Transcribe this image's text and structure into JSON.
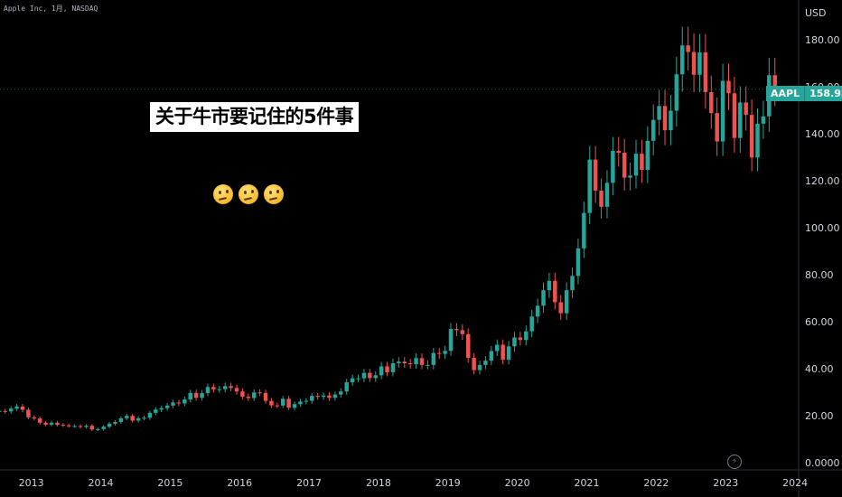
{
  "symbol_title": "Apple Inc, 1月, NASDAQ",
  "currency": "USD",
  "headline": "关于牛市要记住的5件事",
  "emoji_icons": [
    "thinking-face-icon",
    "thinking-face-icon",
    "thinking-face-icon"
  ],
  "price_tag": {
    "symbol": "AAPL",
    "value": "158.93"
  },
  "colors": {
    "up": "#26a69a",
    "down": "#ef5350",
    "background": "#000000",
    "text": "#d1d4dc"
  },
  "chart_data": {
    "type": "candlestick",
    "xlim": [
      2012.55,
      2024.05
    ],
    "ylim": [
      0,
      190
    ],
    "yticks": [
      "0.0000",
      "20.00",
      "40.00",
      "60.00",
      "80.00",
      "100.00",
      "120.00",
      "140.00",
      "160.00",
      "180.00"
    ],
    "ytick_values": [
      0,
      20,
      40,
      60,
      80,
      100,
      120,
      140,
      160,
      180
    ],
    "xticks": [
      "2013",
      "2014",
      "2015",
      "2016",
      "2017",
      "2018",
      "2019",
      "2020",
      "2021",
      "2022",
      "2023",
      "2024"
    ],
    "xtick_values": [
      2013,
      2014,
      2015,
      2016,
      2017,
      2018,
      2019,
      2020,
      2021,
      2022,
      2023,
      2024
    ],
    "last_price": 158.93,
    "close_series": [
      21.6,
      22.0,
      21.8,
      23.0,
      23.9,
      22.5,
      19.3,
      18.8,
      17.0,
      16.2,
      17.0,
      16.1,
      15.9,
      15.6,
      15.6,
      15.2,
      15.7,
      14.1,
      14.3,
      15.3,
      16.6,
      17.3,
      18.9,
      19.9,
      17.9,
      18.9,
      19.1,
      21.2,
      22.6,
      23.2,
      24.3,
      25.6,
      25.2,
      26.9,
      29.7,
      27.6,
      29.6,
      32.2,
      31.2,
      31.3,
      32.6,
      31.8,
      30.3,
      28.1,
      27.5,
      29.9,
      29.7,
      26.3,
      24.4,
      24.3,
      27.2,
      23.4,
      24.9,
      26.0,
      26.3,
      28.4,
      28.0,
      28.6,
      27.6,
      29.0,
      30.3,
      34.2,
      35.9,
      35.9,
      38.2,
      36.0,
      37.2,
      41.0,
      38.5,
      42.3,
      43.0,
      42.3,
      41.9,
      44.5,
      41.6,
      41.6,
      46.7,
      46.3,
      47.6,
      56.9,
      56.4,
      54.7,
      44.6,
      39.4,
      41.6,
      43.4,
      47.5,
      50.2,
      43.8,
      49.5,
      53.3,
      52.2,
      55.9,
      62.2,
      66.8,
      73.4,
      77.4,
      68.3,
      63.6,
      73.4,
      79.5,
      91.2,
      106.3,
      129.0,
      115.8,
      108.9,
      119.1,
      132.7,
      131.9,
      121.3,
      122.2,
      131.5,
      124.6,
      137.0,
      145.9,
      151.8,
      141.5,
      149.8,
      165.3,
      177.6,
      174.8,
      165.1,
      174.6,
      157.7,
      148.8,
      136.7,
      162.5,
      157.2,
      138.2,
      153.3,
      148.0,
      129.9,
      144.3,
      147.4,
      164.9,
      158.9
    ],
    "start_month": "2012-06"
  }
}
